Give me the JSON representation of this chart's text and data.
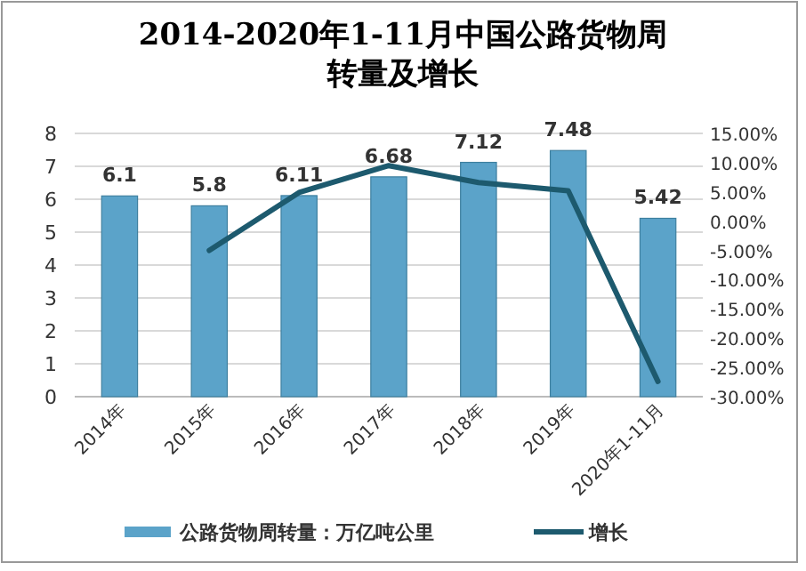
{
  "chart_data": {
    "type": "bar",
    "title": "2014-2020年1-11月中国公路货物周转量及增长",
    "categories": [
      "2014年",
      "2015年",
      "2016年",
      "2017年",
      "2018年",
      "2019年",
      "2020年1-11月"
    ],
    "series": [
      {
        "name": "公路货物周转量：万亿吨公里",
        "color": "#5ba3c9",
        "values": [
          6.1,
          5.8,
          6.11,
          6.68,
          7.12,
          7.48,
          5.42
        ],
        "value_labels": [
          "6.1",
          "5.8",
          "6.11",
          "6.68",
          "7.12",
          "7.48",
          "5.42"
        ]
      },
      {
        "name": "增长",
        "type": "line",
        "axis": "y2",
        "color": "#1d5a6e",
        "values": [
          null,
          -5.0,
          4.9,
          9.5,
          6.6,
          5.2,
          -27.4
        ]
      }
    ],
    "ylim": [
      0,
      8
    ],
    "yticks": [
      0,
      1,
      2,
      3,
      4,
      5,
      6,
      7,
      8
    ],
    "y2lim": [
      -30,
      15
    ],
    "y2ticks": [
      {
        "value": -30,
        "label": "-30.00%"
      },
      {
        "value": -25,
        "label": "-25.00%"
      },
      {
        "value": -20,
        "label": "-20.00%"
      },
      {
        "value": -15,
        "label": "-15.00%"
      },
      {
        "value": -10,
        "label": "-10.00%"
      },
      {
        "value": -5,
        "label": "-5.00%"
      },
      {
        "value": 0,
        "label": "0.00%"
      },
      {
        "value": 5,
        "label": "5.00%"
      },
      {
        "value": 10,
        "label": "10.00%"
      },
      {
        "value": 15,
        "label": "15.00%"
      }
    ],
    "grid": "y",
    "legend": "bottom",
    "marker": "none",
    "line_style": "solid"
  }
}
